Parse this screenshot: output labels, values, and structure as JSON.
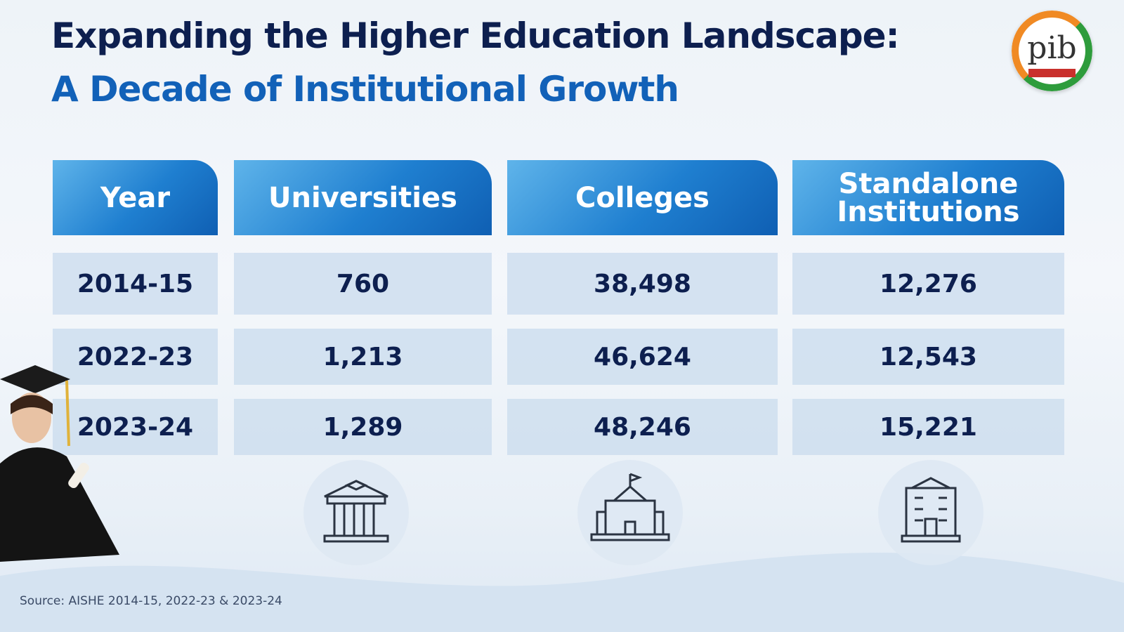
{
  "header": {
    "title": "Expanding the Higher Education Landscape:",
    "subtitle": "A Decade of Institutional Growth",
    "logo": "pib"
  },
  "table": {
    "columns": [
      "Year",
      "Universities",
      "Colleges",
      "Standalone Institutions"
    ],
    "rows": [
      [
        "2014-15",
        "760",
        "38,498",
        "12,276"
      ],
      [
        "2022-23",
        "1,213",
        "46,624",
        "12,543"
      ],
      [
        "2023-24",
        "1,289",
        "48,246",
        "15,221"
      ]
    ]
  },
  "footer": {
    "source": "Source: AISHE 2014-15, 2022-23 & 2023-24"
  }
}
